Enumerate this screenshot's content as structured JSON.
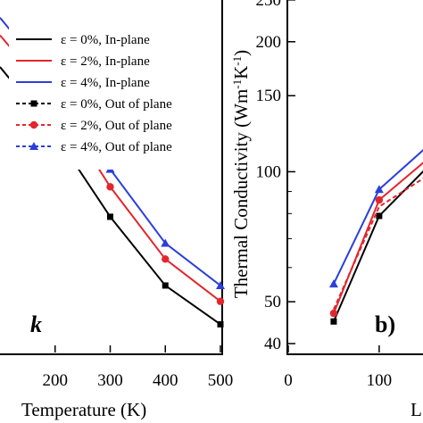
{
  "chart_data": [
    {
      "type": "line",
      "panel": "a",
      "panel_label_fragment": "k",
      "xlabel": "Temperature (K)",
      "xlabel_visible": "Temperature (K)",
      "x_ticks": [
        "200",
        "300",
        "400",
        "500"
      ],
      "xlim": [
        100,
        500
      ],
      "ylim": [
        0,
        1
      ],
      "x": [
        200,
        300,
        400,
        500
      ],
      "legend": {
        "placement": "top-right",
        "entries": [
          {
            "label": "ε = 0%,  In-plane",
            "color": "#000000",
            "dash": "solid",
            "marker": "none"
          },
          {
            "label": "ε = 2%,  In-plane",
            "color": "#e3262d",
            "dash": "solid",
            "marker": "none"
          },
          {
            "label": "ε = 4%,  In-plane",
            "color": "#2b3fd9",
            "dash": "solid",
            "marker": "none"
          },
          {
            "label": "ε = 0%,  Out of plane",
            "color": "#000000",
            "dash": "dashed",
            "marker": "square"
          },
          {
            "label": "ε = 2%,  Out of plane",
            "color": "#e3262d",
            "dash": "dashed",
            "marker": "circle"
          },
          {
            "label": "ε = 4%,  Out of plane",
            "color": "#2b3fd9",
            "dash": "dashed",
            "marker": "triangle"
          }
        ]
      },
      "series": [
        {
          "color": "#000000",
          "marker": "square",
          "values": [
            0.62,
            0.385,
            0.19,
            0.08
          ],
          "start": 0.81
        },
        {
          "color": "#e3262d",
          "marker": "circle",
          "values": [
            0.715,
            0.47,
            0.265,
            0.145
          ],
          "start": 0.9
        },
        {
          "color": "#2b3fd9",
          "marker": "triangle",
          "values": [
            0.76,
            0.52,
            0.31,
            0.19
          ],
          "start": 0.95
        }
      ]
    },
    {
      "type": "line",
      "panel": "b",
      "panel_label": "b)",
      "ylabel": "Thermal Conductivity (Wm",
      "ylabel_sup1": "-1",
      "ylabel_mid": "K",
      "ylabel_sup2": "-1",
      "ylabel_end": ")",
      "xlabel_fragment": "L",
      "yscale": "log",
      "ylim": [
        40,
        250
      ],
      "y_ticks": [
        "40",
        "50",
        "100",
        "150",
        "200",
        "250"
      ],
      "x_ticks": [
        "0",
        "100"
      ],
      "xlim": [
        0,
        160
      ],
      "series": [
        {
          "color": "#000000",
          "marker": "square",
          "x": [
            50,
            100,
            160
          ],
          "y": [
            45,
            79,
            106
          ]
        },
        {
          "color": "#e3262d",
          "marker": "circle",
          "x": [
            50,
            100,
            160
          ],
          "y": [
            47,
            86,
            110
          ]
        },
        {
          "color": "#2b3fd9",
          "marker": "triangle",
          "x": [
            50,
            100,
            160
          ],
          "y": [
            55,
            91,
            118
          ]
        },
        {
          "color": "#e3262d",
          "marker": "none",
          "dash": "dashed",
          "x": [
            50,
            100,
            160
          ],
          "y": [
            48,
            83,
            100
          ]
        }
      ]
    }
  ]
}
